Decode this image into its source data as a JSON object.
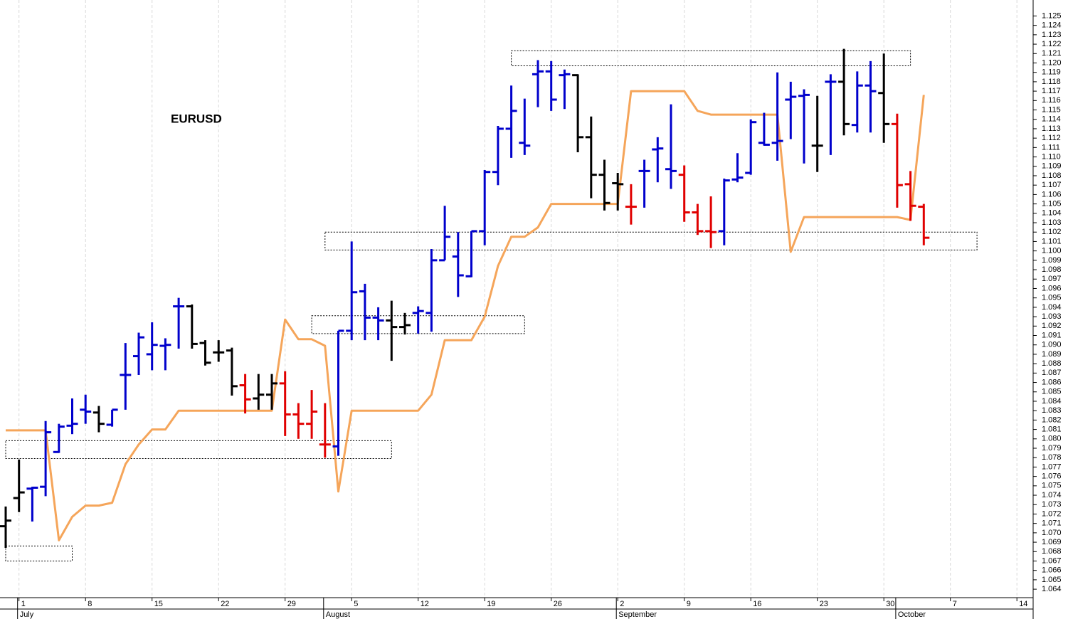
{
  "chart_data": {
    "type": "ohlc",
    "title": "EURUSD",
    "categories": [
      null,
      "1",
      null,
      null,
      null,
      null,
      "8",
      null,
      null,
      null,
      null,
      "15",
      null,
      null,
      null,
      null,
      "22",
      null,
      null,
      null,
      null,
      "29",
      null,
      null,
      null,
      null,
      "5",
      null,
      null,
      null,
      null,
      "12",
      null,
      null,
      null,
      null,
      "19",
      null,
      null,
      null,
      null,
      "26",
      null,
      null,
      null,
      null,
      "2",
      null,
      null,
      null,
      null,
      "9",
      null,
      null,
      null,
      null,
      "16",
      null,
      null,
      null,
      null,
      "23",
      null,
      null,
      null,
      null,
      "30",
      null,
      null,
      null,
      null,
      "7",
      null,
      null,
      null,
      null,
      "14",
      null
    ],
    "months": [
      null,
      "July",
      null,
      null,
      null,
      null,
      null,
      null,
      null,
      null,
      null,
      null,
      null,
      null,
      null,
      null,
      null,
      null,
      null,
      null,
      null,
      null,
      null,
      null,
      "August",
      null,
      null,
      null,
      null,
      null,
      null,
      null,
      null,
      null,
      null,
      null,
      null,
      null,
      null,
      null,
      null,
      null,
      null,
      null,
      null,
      null,
      "September",
      null,
      null,
      null,
      null,
      null,
      null,
      null,
      null,
      null,
      null,
      null,
      null,
      null,
      null,
      null,
      null,
      null,
      null,
      null,
      null,
      "October",
      null,
      null,
      null,
      null,
      null,
      null,
      null,
      null,
      null,
      null
    ],
    "open": [
      1.0707,
      1.0737,
      1.0747,
      1.0749,
      1.0786,
      1.0814,
      1.0831,
      1.0828,
      1.0815,
      1.0868,
      1.0888,
      1.089,
      1.0899,
      1.0941,
      1.0941,
      1.0902,
      1.0892,
      1.0894,
      1.0857,
      1.0843,
      1.0847,
      1.0859,
      1.0826,
      1.0816,
      1.0794,
      1.0792,
      1.0915,
      1.0957,
      1.0929,
      1.0926,
      1.0919,
      1.0934,
      1.0934,
      1.099,
      1.0994,
      1.0973,
      1.1021,
      1.1084,
      1.113,
      1.1115,
      1.1188,
      1.1191,
      1.1187,
      1.1187,
      1.1121,
      1.1081,
      1.1072,
      1.1047,
      1.1085,
      1.1108,
      1.1087,
      1.1081,
      1.1041,
      1.1021,
      1.1021,
      1.1076,
      1.1083,
      1.1115,
      1.1115,
      1.1161,
      1.1165,
      1.1112,
      1.118,
      1.118,
      1.1134,
      1.1176,
      1.1168,
      1.1135,
      1.1071,
      1.1047,
      null,
      null,
      null,
      null,
      null,
      null,
      null,
      null
    ],
    "high": [
      1.0728,
      1.0778,
      1.0749,
      1.0819,
      1.0816,
      1.0843,
      1.0847,
      1.0835,
      1.0831,
      1.0902,
      1.0913,
      1.0924,
      1.0907,
      1.095,
      1.0943,
      1.0905,
      1.0905,
      1.0897,
      1.0869,
      1.0869,
      1.0869,
      1.0872,
      1.0838,
      1.0852,
      1.0838,
      1.0915,
      1.101,
      1.0965,
      1.094,
      1.0947,
      1.0934,
      1.0941,
      1.1002,
      1.1048,
      1.102,
      1.1021,
      1.1086,
      1.1133,
      1.1176,
      1.1162,
      1.1203,
      1.1202,
      1.1193,
      1.1188,
      1.1143,
      1.1097,
      1.1083,
      1.1071,
      1.1097,
      1.1121,
      1.1156,
      1.1091,
      1.105,
      1.1058,
      1.1077,
      1.1104,
      1.114,
      1.1147,
      1.119,
      1.118,
      1.1172,
      1.1165,
      1.1188,
      1.1215,
      1.1191,
      1.1202,
      1.121,
      1.1146,
      1.1085,
      1.105,
      null,
      null,
      null,
      null,
      null,
      null,
      null,
      null
    ],
    "low": [
      1.0684,
      1.0722,
      1.0712,
      1.0739,
      1.0785,
      1.0805,
      1.0816,
      1.0807,
      1.0813,
      1.0831,
      1.0868,
      1.0873,
      1.0873,
      1.0896,
      1.0896,
      1.0878,
      1.0882,
      1.0846,
      1.0827,
      1.0831,
      1.0831,
      1.0803,
      1.08,
      1.08,
      1.078,
      1.0782,
      1.0905,
      1.0905,
      1.0905,
      1.0883,
      1.0911,
      1.0912,
      1.0914,
      1.099,
      1.0951,
      1.0972,
      1.1006,
      1.107,
      1.1099,
      1.1102,
      1.1153,
      1.1149,
      1.1151,
      1.1105,
      1.1056,
      1.1043,
      1.1043,
      1.1028,
      1.1046,
      1.1073,
      1.1066,
      1.1031,
      1.1017,
      1.1003,
      1.1006,
      1.1073,
      1.1081,
      1.1112,
      1.1096,
      1.1119,
      1.1093,
      1.1084,
      1.1102,
      1.1123,
      1.1126,
      1.1126,
      1.1115,
      1.1046,
      1.1032,
      1.1006,
      null,
      null,
      null,
      null,
      null,
      null,
      null,
      null
    ],
    "close": [
      1.0713,
      1.0743,
      1.0748,
      1.0807,
      1.0813,
      1.0816,
      1.0829,
      1.0816,
      1.0831,
      1.0868,
      1.0908,
      1.09,
      1.09,
      1.0941,
      1.0901,
      1.0881,
      1.0892,
      1.0856,
      1.0842,
      1.0847,
      1.0859,
      1.0826,
      1.0816,
      1.0829,
      1.0794,
      1.0915,
      1.0956,
      1.0929,
      1.0926,
      1.0919,
      1.0921,
      1.0936,
      1.099,
      1.1015,
      1.0974,
      1.1021,
      1.1084,
      1.113,
      1.1149,
      1.1112,
      1.1191,
      1.1161,
      1.1188,
      1.1121,
      1.1081,
      1.1051,
      1.1071,
      1.1047,
      1.1085,
      1.1109,
      1.1085,
      1.1041,
      1.1021,
      1.102,
      1.1075,
      1.1078,
      1.1137,
      1.1113,
      1.1117,
      1.1164,
      1.1166,
      1.1112,
      1.118,
      1.1135,
      1.1176,
      1.117,
      1.1135,
      1.107,
      1.1048,
      1.1014,
      null,
      null,
      null,
      null,
      null,
      null,
      null,
      null
    ],
    "bar_colors": [
      "#000000",
      "#000000",
      "#0000cc",
      "#0000cc",
      "#0000cc",
      "#0000cc",
      "#0000cc",
      "#000000",
      "#0000cc",
      "#0000cc",
      "#0000cc",
      "#0000cc",
      "#0000cc",
      "#0000cc",
      "#000000",
      "#000000",
      "#000000",
      "#000000",
      "#e00000",
      "#000000",
      "#000000",
      "#e00000",
      "#e00000",
      "#e00000",
      "#e00000",
      "#0000cc",
      "#0000cc",
      "#0000cc",
      "#0000cc",
      "#000000",
      "#000000",
      "#0000cc",
      "#0000cc",
      "#0000cc",
      "#0000cc",
      "#0000cc",
      "#0000cc",
      "#0000cc",
      "#0000cc",
      "#0000cc",
      "#0000cc",
      "#0000cc",
      "#0000cc",
      "#000000",
      "#000000",
      "#000000",
      "#000000",
      "#e00000",
      "#0000cc",
      "#0000cc",
      "#0000cc",
      "#e00000",
      "#e00000",
      "#e00000",
      "#0000cc",
      "#0000cc",
      "#0000cc",
      "#0000cc",
      "#0000cc",
      "#0000cc",
      "#0000cc",
      "#000000",
      "#0000cc",
      "#000000",
      "#0000cc",
      "#0000cc",
      "#000000",
      "#e00000",
      "#e00000",
      "#e00000"
    ],
    "indicator": {
      "color": "#f5a55a",
      "values": [
        1.0809,
        1.0809,
        1.0809,
        1.0809,
        1.0692,
        1.0717,
        1.0729,
        1.0729,
        1.0732,
        1.0773,
        1.0794,
        1.081,
        1.081,
        1.083,
        1.083,
        1.083,
        1.083,
        1.083,
        1.083,
        1.083,
        1.083,
        1.0927,
        1.0906,
        1.0906,
        1.0899,
        1.0744,
        1.083,
        1.083,
        1.083,
        1.083,
        1.083,
        1.083,
        1.0847,
        1.0905,
        1.0905,
        1.0905,
        1.093,
        1.0984,
        1.1015,
        1.1015,
        1.1025,
        1.105,
        1.105,
        1.105,
        1.105,
        1.105,
        1.105,
        1.117,
        1.117,
        1.117,
        1.117,
        1.117,
        1.1149,
        1.1145,
        1.1145,
        1.1145,
        1.1145,
        1.1145,
        1.1145,
        1.0999,
        1.1036,
        1.1036,
        1.1036,
        1.1036,
        1.1036,
        1.1036,
        1.1036,
        1.1036,
        1.1033,
        1.1166,
        null,
        null,
        null,
        null,
        null,
        null,
        null,
        null
      ]
    },
    "zones": [
      {
        "from": 0,
        "to": 5,
        "low": 1.067,
        "high": 1.0686
      },
      {
        "from": 0,
        "to": 29,
        "low": 1.0779,
        "high": 1.0798
      },
      {
        "from": 23,
        "to": 39,
        "low": 1.0912,
        "high": 1.0931
      },
      {
        "from": 24,
        "to": 73,
        "low": 1.1001,
        "high": 1.102
      },
      {
        "from": 38,
        "to": 68,
        "low": 1.1197,
        "high": 1.1213
      }
    ],
    "ylim": [
      1.0631,
      1.1267
    ],
    "yticks": [
      1.064,
      1.065,
      1.066,
      1.067,
      1.068,
      1.069,
      {
        "value": 1.07,
        "label": "1.070"
      },
      1.071,
      1.072,
      1.073,
      1.074,
      1.075,
      1.076,
      1.077,
      1.078,
      1.079,
      {
        "value": 1.08,
        "label": "1.080"
      },
      1.081,
      1.082,
      1.083,
      1.084,
      1.085,
      1.086,
      1.087,
      1.088,
      1.089,
      {
        "value": 1.09,
        "label": "1.090"
      },
      1.091,
      1.092,
      1.093,
      1.094,
      1.095,
      1.096,
      1.097,
      1.098,
      1.099,
      {
        "value": 1.1,
        "label": "1.100"
      },
      1.101,
      1.102,
      1.103,
      1.104,
      1.105,
      1.106,
      1.107,
      1.108,
      1.109,
      {
        "value": 1.11,
        "label": "1.110"
      },
      1.111,
      1.112,
      1.113,
      1.114,
      1.115,
      1.116,
      1.117,
      1.118,
      1.119,
      {
        "value": 1.12,
        "label": "1.120"
      },
      1.121,
      1.122,
      1.123,
      1.124,
      1.125
    ],
    "grid": true
  }
}
